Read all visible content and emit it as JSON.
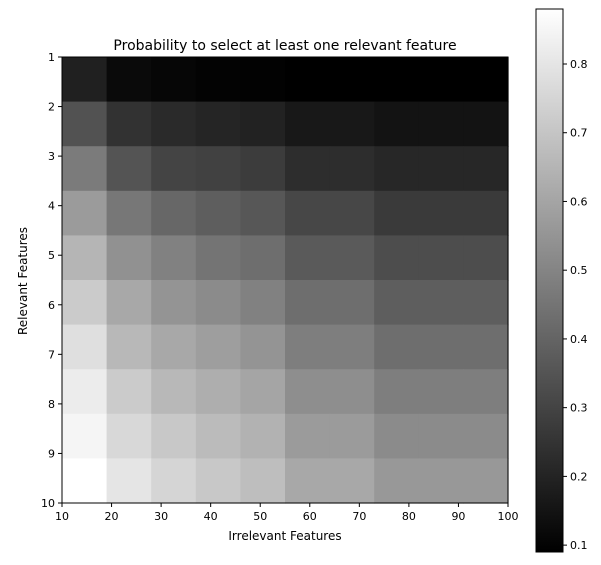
{
  "chart_data": {
    "type": "heatmap",
    "title": "Probability to select at least one relevant feature",
    "xlabel": "Irrelevant Features",
    "ylabel": "Relevant Features",
    "x": [
      10,
      20,
      30,
      40,
      50,
      60,
      70,
      80,
      90,
      100
    ],
    "y": [
      1,
      2,
      3,
      4,
      5,
      6,
      7,
      8,
      9,
      10
    ],
    "values": [
      [
        0.19,
        0.12,
        0.11,
        0.1,
        0.095,
        0.085,
        0.085,
        0.075,
        0.075,
        0.075
      ],
      [
        0.345,
        0.245,
        0.22,
        0.205,
        0.195,
        0.165,
        0.165,
        0.15,
        0.15,
        0.15
      ],
      [
        0.47,
        0.35,
        0.3,
        0.29,
        0.275,
        0.23,
        0.23,
        0.21,
        0.21,
        0.21
      ],
      [
        0.57,
        0.46,
        0.41,
        0.38,
        0.36,
        0.31,
        0.31,
        0.27,
        0.27,
        0.27
      ],
      [
        0.65,
        0.54,
        0.49,
        0.45,
        0.43,
        0.37,
        0.37,
        0.33,
        0.33,
        0.33
      ],
      [
        0.72,
        0.61,
        0.55,
        0.52,
        0.49,
        0.43,
        0.43,
        0.38,
        0.38,
        0.38
      ],
      [
        0.78,
        0.66,
        0.61,
        0.58,
        0.55,
        0.48,
        0.48,
        0.43,
        0.43,
        0.43
      ],
      [
        0.82,
        0.72,
        0.66,
        0.63,
        0.6,
        0.53,
        0.53,
        0.48,
        0.48,
        0.48
      ],
      [
        0.85,
        0.76,
        0.71,
        0.67,
        0.64,
        0.57,
        0.57,
        0.52,
        0.52,
        0.52
      ],
      [
        0.88,
        0.8,
        0.75,
        0.71,
        0.68,
        0.61,
        0.61,
        0.56,
        0.56,
        0.56
      ]
    ],
    "colormap": "gray",
    "colorbar": {
      "min": 0.09,
      "max": 0.88,
      "ticks": [
        0.1,
        0.2,
        0.3,
        0.4,
        0.5,
        0.6,
        0.7,
        0.8
      ],
      "tick_labels": [
        "0.1",
        "0.2",
        "0.3",
        "0.4",
        "0.5",
        "0.6",
        "0.7",
        "0.8"
      ]
    },
    "grid": false,
    "legend": "none"
  }
}
